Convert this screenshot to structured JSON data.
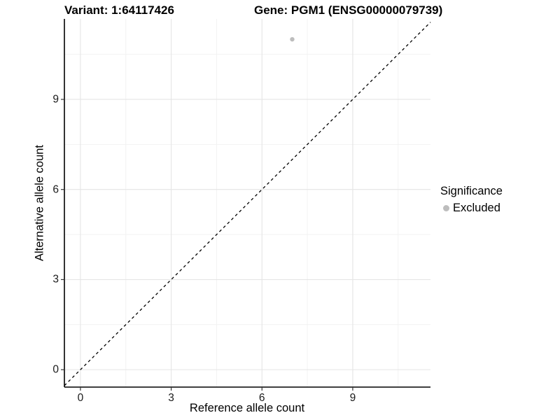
{
  "titles": {
    "variant": "Variant: 1:64117426",
    "gene": "Gene: PGM1 (ENSG00000079739)"
  },
  "chart_data": {
    "type": "scatter",
    "xlabel": "Reference allele count",
    "ylabel": "Alternative allele count",
    "xlim": [
      -0.53,
      11.57
    ],
    "ylim": [
      -0.58,
      11.68
    ],
    "xticks": [
      0,
      3,
      6,
      9
    ],
    "yticks": [
      0,
      3,
      6,
      9
    ],
    "xticks_minor": [
      1.5,
      4.5,
      7.5,
      10.5
    ],
    "yticks_minor": [
      1.5,
      4.5,
      7.5,
      10.5
    ],
    "grid": true,
    "points": [
      {
        "x": 7,
        "y": 11,
        "series": "Excluded"
      }
    ],
    "reference_line": {
      "slope": 1,
      "intercept": 0,
      "style": "dashed"
    },
    "legend": {
      "position": "right",
      "title": "Significance",
      "items": [
        {
          "label": "Excluded",
          "color": "#bdbdbd"
        }
      ]
    }
  },
  "colors": {
    "point": "#bdbdbd",
    "grid_major": "#e5e5e5",
    "grid_minor": "#f2f2f2",
    "axis_line": "#000000",
    "tick_mark": "#333333",
    "reference_line": "#000000",
    "background": "#ffffff"
  }
}
